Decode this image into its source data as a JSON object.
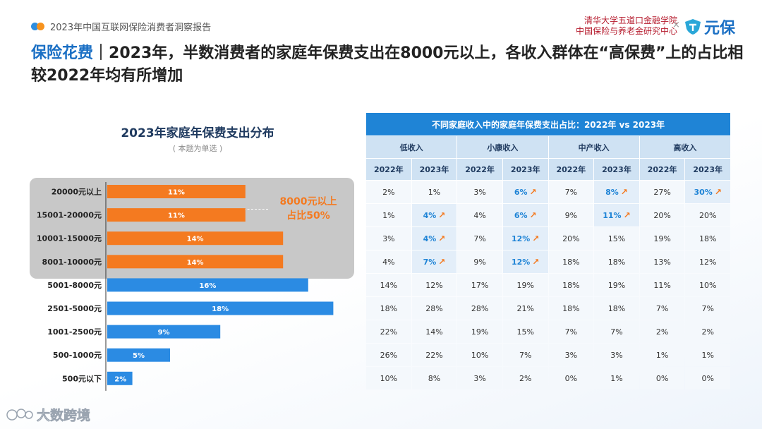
{
  "header": {
    "report_title": "2023年中国互联网保险消费者洞察报告",
    "partner_line1": "清华大学五道口金融学院",
    "partner_line2": "中国保险与养老金研究中心",
    "times": "×",
    "brand": "元保"
  },
  "title": {
    "highlight": "保险花费",
    "separator": "｜",
    "text": "2023年，半数消费者的家庭年保费支出在8000元以上，各收入群体在“高保费”上的占比相较2022年均有所增加"
  },
  "chart_data": [
    {
      "type": "bar",
      "orientation": "horizontal",
      "title": "2023年家庭年保费支出分布",
      "subtitle": "( 本题为单选 )",
      "categories": [
        "20000元以上",
        "15001-20000元",
        "10001-15000元",
        "8001-10000元",
        "5001-8000元",
        "2501-5000元",
        "1001-2500元",
        "500-1000元",
        "500元以下"
      ],
      "values": [
        11,
        11,
        14,
        14,
        16,
        18,
        9,
        5,
        2
      ],
      "data_labels": [
        "11%",
        "11%",
        "14%",
        "14%",
        "16%",
        "18%",
        "9%",
        "5%",
        "2%"
      ],
      "unit": "%",
      "highlight_categories": [
        "20000元以上",
        "15001-20000元",
        "10001-15000元",
        "8001-10000元"
      ],
      "annotation": {
        "line1": "8000元以上",
        "line2": "占比50%"
      },
      "colors": {
        "highlight": "#f47a20",
        "normal": "#2b8be3",
        "axis": "#333333"
      }
    },
    {
      "type": "table",
      "title": "不同家庭收入中的家庭年保费支出占比：2022年 vs 2023年",
      "groups": [
        "低收入",
        "小康收入",
        "中产收入",
        "高收入"
      ],
      "years": [
        "2022年",
        "2023年",
        "2022年",
        "2023年",
        "2022年",
        "2023年",
        "2022年",
        "2023年"
      ],
      "rows": [
        [
          "2%",
          "1%",
          "3%",
          "6%",
          "7%",
          "8%",
          "27%",
          "30%"
        ],
        [
          "1%",
          "4%",
          "4%",
          "6%",
          "9%",
          "11%",
          "20%",
          "20%"
        ],
        [
          "3%",
          "4%",
          "7%",
          "12%",
          "20%",
          "15%",
          "19%",
          "18%"
        ],
        [
          "4%",
          "7%",
          "9%",
          "12%",
          "18%",
          "18%",
          "13%",
          "12%"
        ],
        [
          "14%",
          "12%",
          "17%",
          "19%",
          "18%",
          "19%",
          "11%",
          "10%"
        ],
        [
          "18%",
          "28%",
          "28%",
          "21%",
          "18%",
          "18%",
          "7%",
          "7%"
        ],
        [
          "22%",
          "14%",
          "19%",
          "15%",
          "7%",
          "7%",
          "2%",
          "2%"
        ],
        [
          "26%",
          "22%",
          "10%",
          "7%",
          "3%",
          "3%",
          "1%",
          "1%"
        ],
        [
          "10%",
          "8%",
          "3%",
          "2%",
          "0%",
          "1%",
          "0%",
          "0%"
        ]
      ],
      "increase_marks": [
        [
          false,
          false,
          false,
          true,
          false,
          true,
          false,
          true
        ],
        [
          false,
          true,
          false,
          true,
          false,
          true,
          false,
          false
        ],
        [
          false,
          true,
          false,
          true,
          false,
          false,
          false,
          false
        ],
        [
          false,
          true,
          false,
          true,
          false,
          false,
          false,
          false
        ],
        [
          false,
          false,
          false,
          false,
          false,
          false,
          false,
          false
        ],
        [
          false,
          false,
          false,
          false,
          false,
          false,
          false,
          false
        ],
        [
          false,
          false,
          false,
          false,
          false,
          false,
          false,
          false
        ],
        [
          false,
          false,
          false,
          false,
          false,
          false,
          false,
          false
        ],
        [
          false,
          false,
          false,
          false,
          false,
          false,
          false,
          false
        ]
      ],
      "increase_icon": "up-arrow-icon",
      "colors": {
        "header": "#1f84d6",
        "subheader": "#cfe2f3",
        "highlight_text": "#1f84d6",
        "arrow": "#f47a20"
      }
    }
  ],
  "watermark": {
    "text": "大数跨境",
    "icon": "chat-bubble-icon"
  }
}
